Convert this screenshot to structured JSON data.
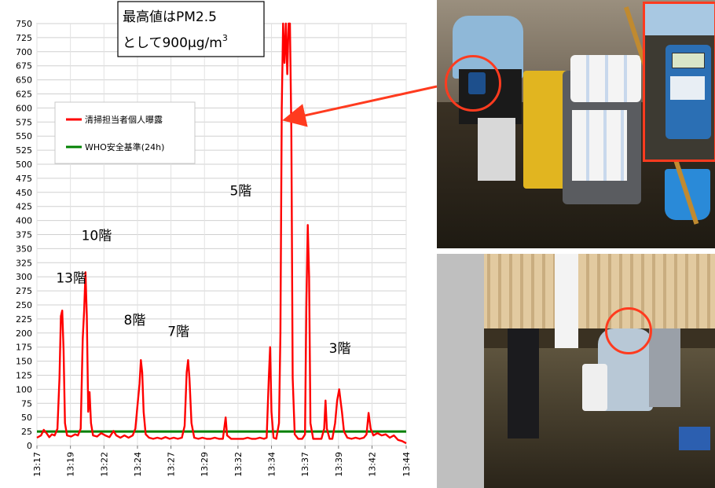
{
  "callout": {
    "line1": "最高値はPM2.5",
    "line2": "として900μg/m",
    "line2_sup": "3"
  },
  "chart_data": {
    "type": "line",
    "title": "",
    "xlabel": "",
    "ylabel": "",
    "ylim": [
      0,
      750
    ],
    "yticks": [
      0,
      25,
      50,
      75,
      100,
      125,
      150,
      175,
      200,
      225,
      250,
      275,
      300,
      325,
      350,
      375,
      400,
      425,
      450,
      475,
      500,
      525,
      550,
      575,
      600,
      625,
      650,
      675,
      700,
      725,
      750
    ],
    "xlim": [
      0,
      27
    ],
    "xticks": [
      "13:17",
      "13:19",
      "13:22",
      "13:24",
      "13:27",
      "13:29",
      "13:32",
      "13:34",
      "13:37",
      "13:39",
      "13:42",
      "13:44"
    ],
    "xtick_positions": [
      0,
      2.45,
      4.9,
      7.35,
      9.8,
      12.25,
      14.7,
      17.15,
      19.6,
      22.05,
      24.5,
      27
    ],
    "grid": true,
    "legend_placement": "upper-left",
    "series": [
      {
        "name": "清掃担当者個人曝露",
        "color": "#ff0000",
        "points": [
          [
            0.0,
            14
          ],
          [
            0.3,
            18
          ],
          [
            0.5,
            28
          ],
          [
            0.7,
            22
          ],
          [
            0.9,
            15
          ],
          [
            1.1,
            20
          ],
          [
            1.3,
            18
          ],
          [
            1.5,
            30
          ],
          [
            1.65,
            120
          ],
          [
            1.75,
            230
          ],
          [
            1.85,
            240
          ],
          [
            1.95,
            170
          ],
          [
            2.05,
            40
          ],
          [
            2.2,
            18
          ],
          [
            2.5,
            16
          ],
          [
            2.8,
            20
          ],
          [
            3.0,
            18
          ],
          [
            3.2,
            30
          ],
          [
            3.35,
            190
          ],
          [
            3.45,
            240
          ],
          [
            3.55,
            308
          ],
          [
            3.65,
            230
          ],
          [
            3.75,
            60
          ],
          [
            3.85,
            95
          ],
          [
            3.95,
            40
          ],
          [
            4.1,
            18
          ],
          [
            4.4,
            16
          ],
          [
            4.7,
            22
          ],
          [
            5.0,
            18
          ],
          [
            5.3,
            15
          ],
          [
            5.6,
            26
          ],
          [
            5.8,
            18
          ],
          [
            6.1,
            14
          ],
          [
            6.4,
            18
          ],
          [
            6.7,
            14
          ],
          [
            7.0,
            18
          ],
          [
            7.2,
            30
          ],
          [
            7.35,
            70
          ],
          [
            7.5,
            110
          ],
          [
            7.6,
            152
          ],
          [
            7.7,
            130
          ],
          [
            7.8,
            60
          ],
          [
            7.95,
            20
          ],
          [
            8.2,
            14
          ],
          [
            8.5,
            12
          ],
          [
            8.8,
            14
          ],
          [
            9.1,
            12
          ],
          [
            9.4,
            15
          ],
          [
            9.7,
            12
          ],
          [
            10.0,
            14
          ],
          [
            10.3,
            12
          ],
          [
            10.6,
            14
          ],
          [
            10.8,
            35
          ],
          [
            10.95,
            130
          ],
          [
            11.05,
            152
          ],
          [
            11.15,
            120
          ],
          [
            11.3,
            40
          ],
          [
            11.5,
            14
          ],
          [
            11.8,
            12
          ],
          [
            12.1,
            14
          ],
          [
            12.4,
            12
          ],
          [
            12.7,
            12
          ],
          [
            13.0,
            14
          ],
          [
            13.3,
            12
          ],
          [
            13.6,
            12
          ],
          [
            13.8,
            50
          ],
          [
            13.9,
            18
          ],
          [
            14.2,
            12
          ],
          [
            14.5,
            12
          ],
          [
            14.8,
            12
          ],
          [
            15.1,
            12
          ],
          [
            15.4,
            14
          ],
          [
            15.7,
            12
          ],
          [
            16.0,
            12
          ],
          [
            16.3,
            14
          ],
          [
            16.6,
            12
          ],
          [
            16.8,
            14
          ],
          [
            16.95,
            120
          ],
          [
            17.05,
            175
          ],
          [
            17.15,
            60
          ],
          [
            17.3,
            14
          ],
          [
            17.5,
            12
          ],
          [
            17.7,
            40
          ],
          [
            17.8,
            200
          ],
          [
            17.9,
            600
          ],
          [
            18.0,
            750
          ],
          [
            18.1,
            680
          ],
          [
            18.2,
            750
          ],
          [
            18.3,
            660
          ],
          [
            18.4,
            750
          ],
          [
            18.5,
            750
          ],
          [
            18.6,
            560
          ],
          [
            18.7,
            120
          ],
          [
            18.85,
            20
          ],
          [
            19.1,
            12
          ],
          [
            19.4,
            12
          ],
          [
            19.6,
            20
          ],
          [
            19.7,
            250
          ],
          [
            19.8,
            392
          ],
          [
            19.9,
            300
          ],
          [
            20.0,
            40
          ],
          [
            20.2,
            12
          ],
          [
            20.5,
            12
          ],
          [
            20.8,
            12
          ],
          [
            21.0,
            30
          ],
          [
            21.1,
            80
          ],
          [
            21.2,
            30
          ],
          [
            21.4,
            12
          ],
          [
            21.6,
            12
          ],
          [
            21.8,
            40
          ],
          [
            21.95,
            80
          ],
          [
            22.1,
            100
          ],
          [
            22.2,
            80
          ],
          [
            22.3,
            60
          ],
          [
            22.45,
            25
          ],
          [
            22.7,
            14
          ],
          [
            23.0,
            12
          ],
          [
            23.3,
            14
          ],
          [
            23.6,
            12
          ],
          [
            23.9,
            14
          ],
          [
            24.1,
            20
          ],
          [
            24.25,
            58
          ],
          [
            24.4,
            30
          ],
          [
            24.6,
            18
          ],
          [
            24.9,
            22
          ],
          [
            25.2,
            18
          ],
          [
            25.5,
            20
          ],
          [
            25.8,
            14
          ],
          [
            26.1,
            18
          ],
          [
            26.4,
            10
          ],
          [
            26.7,
            8
          ],
          [
            27.0,
            4
          ]
        ]
      },
      {
        "name": "WHO安全基準(24h)",
        "color": "#008000",
        "points": [
          [
            0,
            25
          ],
          [
            27,
            25
          ]
        ]
      }
    ],
    "annotations": [
      {
        "text": "13階",
        "x": 1.4,
        "y": 290
      },
      {
        "text": "10階",
        "x": 3.25,
        "y": 365
      },
      {
        "text": "8階",
        "x": 6.35,
        "y": 215
      },
      {
        "text": "7階",
        "x": 9.55,
        "y": 195
      },
      {
        "text": "5階",
        "x": 14.1,
        "y": 445
      },
      {
        "text": "3階",
        "x": 21.35,
        "y": 165
      }
    ]
  },
  "photos": {
    "top_icon": "cleaning-cart-with-monitor-photo",
    "inset_icon": "personal-dust-monitor-closeup-photo",
    "bottom_icon": "cleaner-bending-in-restroom-photo",
    "highlight_color": "#ff3b1f"
  }
}
